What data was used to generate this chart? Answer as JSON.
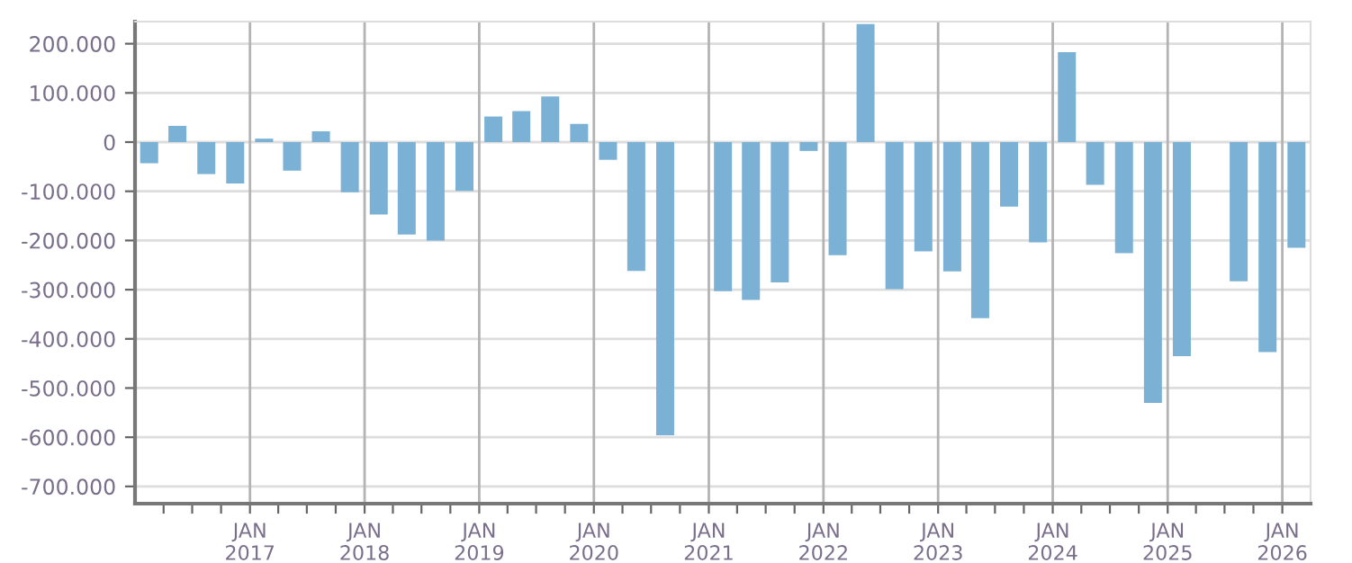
{
  "chart_data": {
    "type": "bar",
    "x": [
      "2016-02-15",
      "2016-05-15",
      "2016-08-15",
      "2016-11-15",
      "2017-02-15",
      "2017-05-15",
      "2017-08-15",
      "2017-11-15",
      "2018-02-15",
      "2018-05-15",
      "2018-08-15",
      "2018-11-15",
      "2019-02-15",
      "2019-05-15",
      "2019-08-15",
      "2019-11-15",
      "2020-02-15",
      "2020-05-15",
      "2020-08-15",
      "2020-11-15",
      "2021-02-15",
      "2021-05-15",
      "2021-08-15",
      "2021-11-15",
      "2022-02-15",
      "2022-05-15",
      "2022-08-15",
      "2022-11-15",
      "2023-02-15",
      "2023-05-15",
      "2023-08-15",
      "2023-11-15",
      "2024-02-15",
      "2024-05-15",
      "2024-08-15",
      "2024-11-15",
      "2025-02-15",
      "2025-05-15",
      "2025-08-15",
      "2025-11-15",
      "2026-02-15"
    ],
    "values": [
      -43000,
      33000,
      -65000,
      -84000,
      7000,
      -58000,
      22000,
      -102000,
      -147000,
      -188000,
      -200000,
      -99000,
      52000,
      63000,
      93000,
      37000,
      -36000,
      -262000,
      -596000,
      null,
      -303000,
      -321000,
      -285000,
      -18000,
      -230000,
      240000,
      -299000,
      -222000,
      -263000,
      -358000,
      -131000,
      -204000,
      183000,
      -87000,
      -226000,
      -530000,
      -435000,
      null,
      -283000,
      -427000,
      -215000
    ],
    "color": "#7ab1d4",
    "xlim": [
      "2016-01-01",
      "2026-04-01"
    ],
    "xticks": [
      {
        "value": "2016-04-01",
        "label": null
      },
      {
        "value": "2016-07-01",
        "label": null
      },
      {
        "value": "2016-10-01",
        "label": null
      },
      {
        "value": "2017-01-01",
        "label": "JAN\n2017"
      },
      {
        "value": "2017-04-01",
        "label": null
      },
      {
        "value": "2017-07-01",
        "label": null
      },
      {
        "value": "2017-10-01",
        "label": null
      },
      {
        "value": "2018-01-01",
        "label": "JAN\n2018"
      },
      {
        "value": "2018-04-01",
        "label": null
      },
      {
        "value": "2018-07-01",
        "label": null
      },
      {
        "value": "2018-10-01",
        "label": null
      },
      {
        "value": "2019-01-01",
        "label": "JAN\n2019"
      },
      {
        "value": "2019-04-01",
        "label": null
      },
      {
        "value": "2019-07-01",
        "label": null
      },
      {
        "value": "2019-10-01",
        "label": null
      },
      {
        "value": "2020-01-01",
        "label": "JAN\n2020"
      },
      {
        "value": "2020-04-01",
        "label": null
      },
      {
        "value": "2020-07-01",
        "label": null
      },
      {
        "value": "2020-10-01",
        "label": null
      },
      {
        "value": "2021-01-01",
        "label": "JAN\n2021"
      },
      {
        "value": "2021-04-01",
        "label": null
      },
      {
        "value": "2021-07-01",
        "label": null
      },
      {
        "value": "2021-10-01",
        "label": null
      },
      {
        "value": "2022-01-01",
        "label": "JAN\n2022"
      },
      {
        "value": "2022-04-01",
        "label": null
      },
      {
        "value": "2022-07-01",
        "label": null
      },
      {
        "value": "2022-10-01",
        "label": null
      },
      {
        "value": "2023-01-01",
        "label": "JAN\n2023"
      },
      {
        "value": "2023-04-01",
        "label": null
      },
      {
        "value": "2023-07-01",
        "label": null
      },
      {
        "value": "2023-10-01",
        "label": null
      },
      {
        "value": "2024-01-01",
        "label": "JAN\n2024"
      },
      {
        "value": "2024-04-01",
        "label": null
      },
      {
        "value": "2024-07-01",
        "label": null
      },
      {
        "value": "2024-10-01",
        "label": null
      },
      {
        "value": "2025-01-01",
        "label": "JAN\n2025"
      },
      {
        "value": "2025-04-01",
        "label": null
      },
      {
        "value": "2025-07-01",
        "label": null
      },
      {
        "value": "2025-10-01",
        "label": null
      },
      {
        "value": "2026-01-01",
        "label": "JAN\n2026"
      }
    ],
    "ylim": [
      -735000,
      245000
    ],
    "yticks": [
      {
        "value": -700000,
        "label": "-700.000"
      },
      {
        "value": -600000,
        "label": "-600.000"
      },
      {
        "value": -500000,
        "label": "-500.000"
      },
      {
        "value": -400000,
        "label": "-400.000"
      },
      {
        "value": -300000,
        "label": "-300.000"
      },
      {
        "value": -200000,
        "label": "-200.000"
      },
      {
        "value": -100000,
        "label": "-100.000"
      },
      0,
      {
        "value": 100000,
        "label": "100.000"
      },
      {
        "value": 200000,
        "label": "200.000"
      }
    ],
    "grid": true
  }
}
